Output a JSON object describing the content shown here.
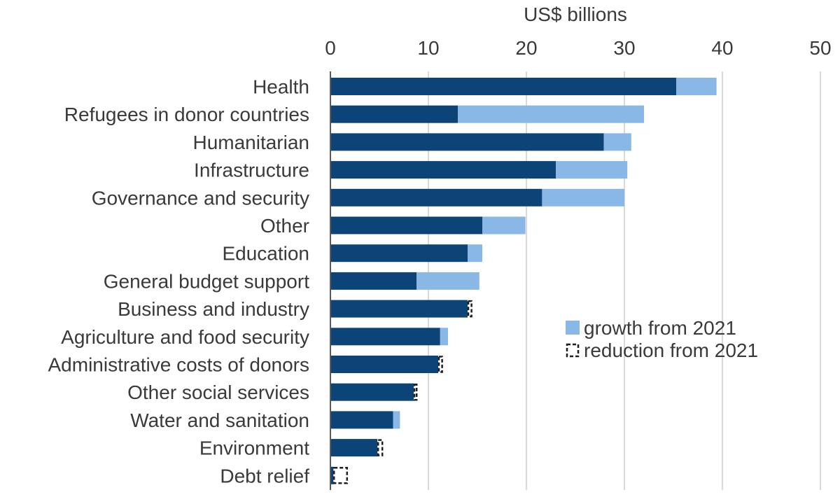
{
  "chart_data": {
    "type": "bar",
    "orientation": "horizontal",
    "stacked": true,
    "xlabel": "US$ billions",
    "xlim": [
      0,
      50
    ],
    "xticks": [
      0,
      10,
      20,
      30,
      40,
      50
    ],
    "grid": "vertical",
    "legend_position": "right",
    "categories": [
      "Health",
      "Refugees in donor countries",
      "Humanitarian",
      "Infrastructure",
      "Governance and security",
      "Other",
      "Education",
      "General budget support",
      "Business and industry",
      "Agriculture and food security",
      "Administrative costs of donors",
      "Other social services",
      "Water and sanitation",
      "Environment",
      "Debt relief"
    ],
    "series": [
      {
        "role": "base",
        "color": "#0d4478",
        "values": [
          35.3,
          13.0,
          27.9,
          23.0,
          21.6,
          15.5,
          14.0,
          8.8,
          14.0,
          11.2,
          11.0,
          8.5,
          6.4,
          4.8,
          0.3
        ]
      },
      {
        "name": "growth from 2021",
        "role": "growth",
        "color": "#8ab8e6",
        "values": [
          4.1,
          19.0,
          2.8,
          7.3,
          8.4,
          4.4,
          1.5,
          6.4,
          0,
          0.8,
          0,
          0,
          0.7,
          0,
          0
        ]
      },
      {
        "name": "reduction from 2021",
        "role": "reduction",
        "color": "#ffffff",
        "border": "#1f1f1f",
        "values": [
          0,
          0,
          0,
          0,
          0,
          0,
          0,
          0,
          0.4,
          0,
          0.4,
          0.3,
          0,
          0.5,
          1.4
        ]
      }
    ],
    "legend": [
      {
        "label": "growth from 2021",
        "style": "filled",
        "color": "#8ab8e6"
      },
      {
        "label": "reduction from 2021",
        "style": "dashed",
        "color": "#1f1f1f"
      }
    ]
  }
}
